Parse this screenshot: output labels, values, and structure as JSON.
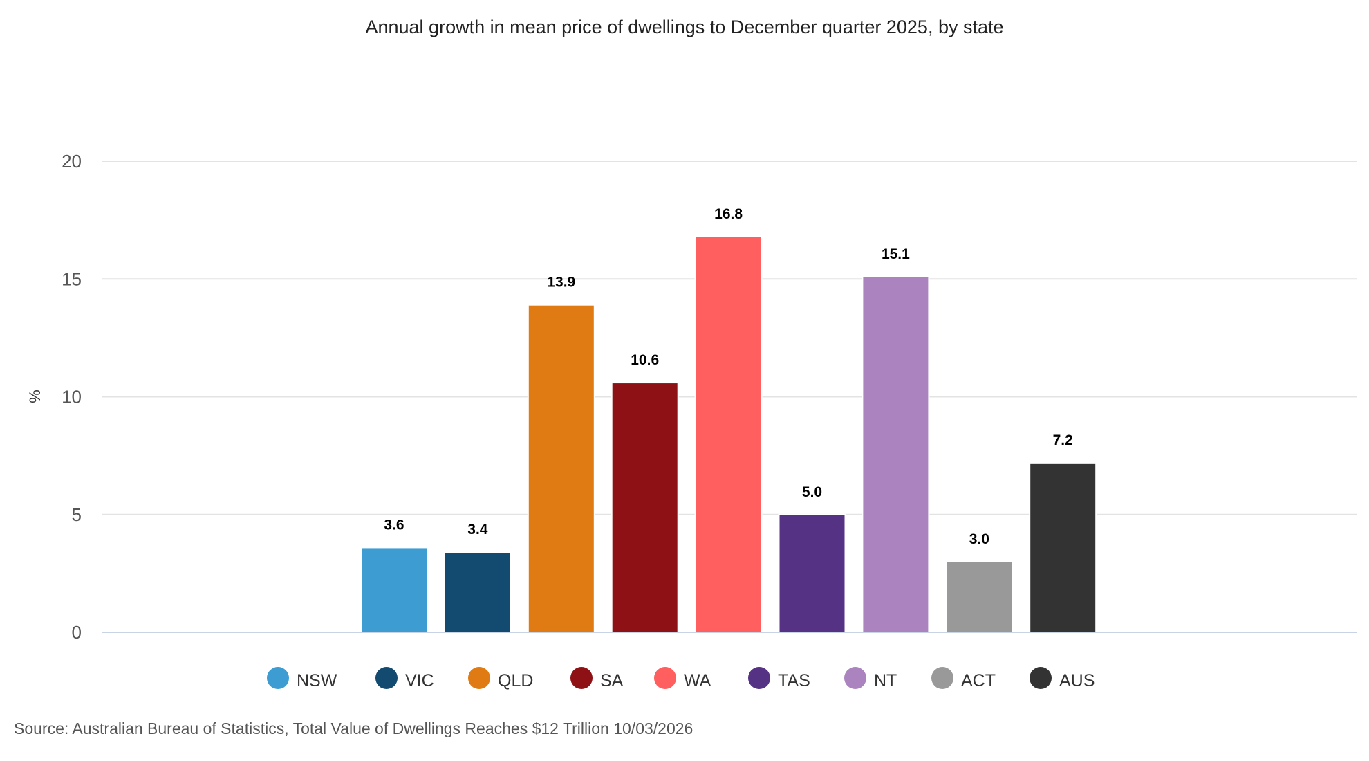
{
  "chart_data": {
    "type": "bar",
    "title": "Annual growth in mean price of dwellings to December quarter 2025, by state",
    "ylabel": "%",
    "xlabel": "",
    "ylim": [
      0,
      20
    ],
    "yticks": [
      0,
      5,
      10,
      15,
      20
    ],
    "grid": true,
    "legend_placement": "bottom",
    "categories": [
      "NSW",
      "VIC",
      "QLD",
      "SA",
      "WA",
      "TAS",
      "NT",
      "ACT",
      "AUS"
    ],
    "values": [
      3.6,
      3.4,
      13.9,
      10.6,
      16.8,
      5.0,
      15.1,
      3.0,
      7.2
    ],
    "data_labels": [
      "3.6",
      "3.4",
      "13.9",
      "10.6",
      "16.8",
      "5.0",
      "15.1",
      "3.0",
      "7.2"
    ],
    "colors": [
      "#3d9dd3",
      "#134a6f",
      "#e07b13",
      "#8e1116",
      "#ff5f5f",
      "#563285",
      "#aa83bf",
      "#999999",
      "#333333"
    ],
    "source": "Source: Australian Bureau of Statistics, Total Value of Dwellings Reaches $12 Trillion 10/03/2026"
  }
}
